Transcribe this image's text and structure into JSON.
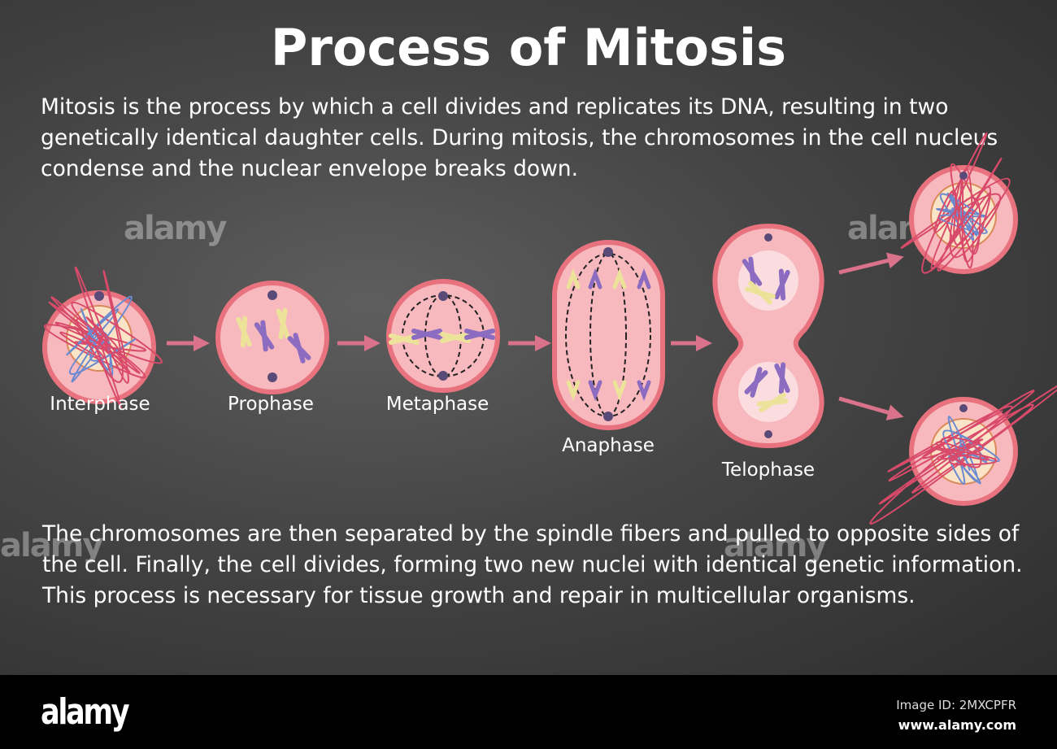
{
  "title": "Process of Mitosis",
  "intro": "Mitosis is the process by which a cell divides and replicates its DNA, resulting in two genetically identical daughter cells. During mitosis, the chromosomes in the cell nucleus condense and the nuclear envelope breaks down.",
  "conclusion": "The chromosomes are then separated by the spindle fibers and pulled to opposite sides of the cell. Finally, the cell divides, forming two new nuclei with identical genetic information. This process is necessary for tissue growth and repair in multicellular organisms.",
  "stages": [
    "Interphase",
    "Prophase",
    "Metaphase",
    "Anaphase",
    "Telophase"
  ],
  "watermark": "alamy",
  "footer": {
    "logo": "alamy",
    "image_id": "Image ID: 2MXCPFR",
    "url": "www.alamy.com"
  },
  "colors": {
    "cell_membrane": "#e8737e",
    "cytoplasm": "#f7b8be",
    "arrow": "#d9728a",
    "chromosome_purple": "#8c6cc0",
    "chromosome_yellow": "#ede29a",
    "centrosome": "#5a4a78"
  }
}
